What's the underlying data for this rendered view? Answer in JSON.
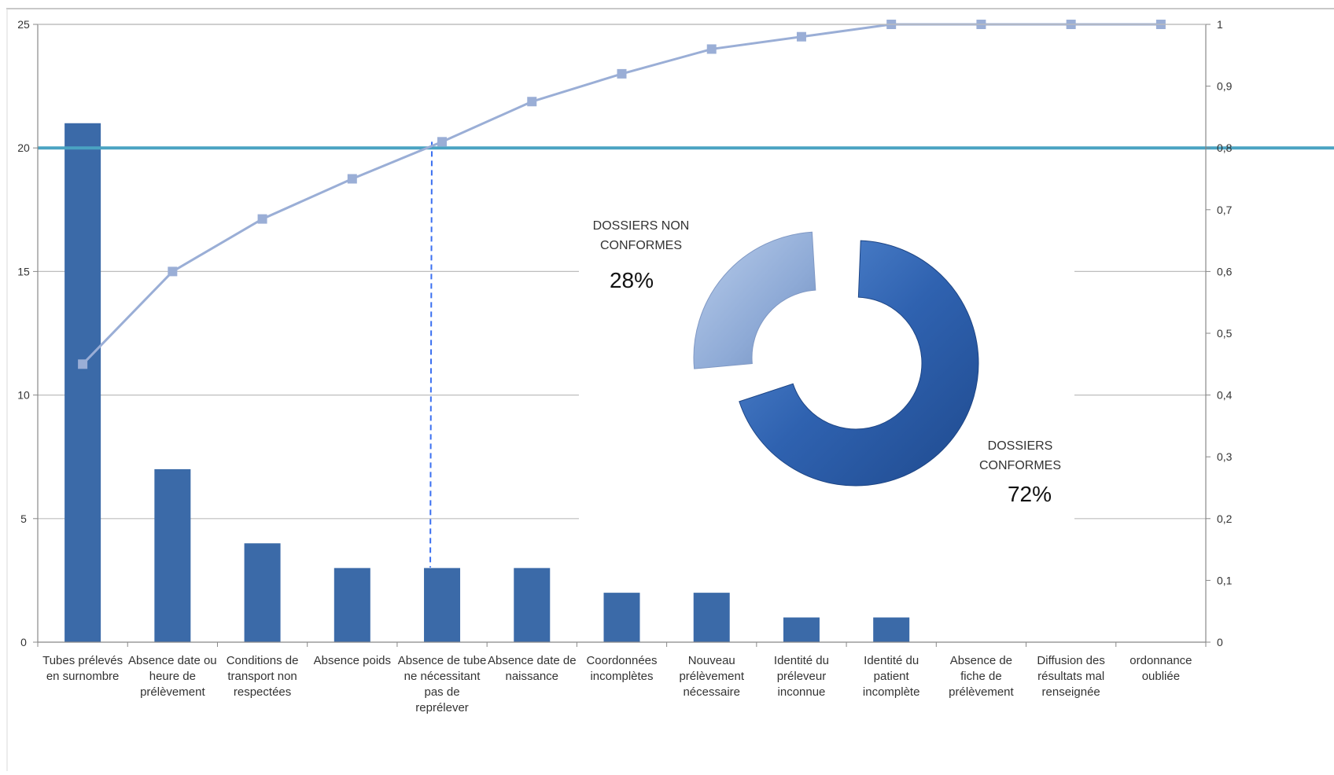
{
  "chart_data": {
    "type": "bar",
    "categories": [
      [
        "Tubes prélevés",
        "en surnombre"
      ],
      [
        "Absence date ou",
        "heure de",
        "prélèvement"
      ],
      [
        "Conditions de",
        "transport non",
        "respectées"
      ],
      [
        "Absence poids"
      ],
      [
        "Absence de tube",
        "ne nécessitant",
        "pas de",
        "reprélever"
      ],
      [
        "Absence date de",
        "naissance"
      ],
      [
        "Coordonnées",
        "incomplètes"
      ],
      [
        "Nouveau",
        "prélèvement",
        "nécessaire"
      ],
      [
        "Identité du",
        "préleveur",
        "inconnue"
      ],
      [
        "Identité du",
        "patient",
        "incomplète"
      ],
      [
        "Absence de",
        "fiche de",
        "prélèvement"
      ],
      [
        "Diffusion des",
        "résultats mal",
        "renseignée"
      ],
      [
        "ordonnance",
        "oubliée"
      ]
    ],
    "series": [
      {
        "type": "bar",
        "axis": "left",
        "values": [
          21,
          7,
          4,
          3,
          3,
          3,
          2,
          2,
          1,
          1,
          0,
          0,
          0
        ],
        "color": "#3b6aa8"
      },
      {
        "type": "line",
        "axis": "right",
        "values": [
          0.45,
          0.6,
          0.685,
          0.75,
          0.81,
          0.875,
          0.92,
          0.96,
          0.98,
          1,
          1,
          1,
          1
        ],
        "color": "#9aaed6"
      }
    ],
    "left_axis": {
      "ylim": [
        0,
        25
      ],
      "ticks": [
        "0",
        "5",
        "10",
        "15",
        "20",
        "25"
      ],
      "tick_values": [
        0,
        5,
        10,
        15,
        20,
        25
      ]
    },
    "right_axis": {
      "ylim": [
        0,
        1
      ],
      "ticks": [
        "0",
        "0,1",
        "0,2",
        "0,3",
        "0,4",
        "0,5",
        "0,6",
        "0,7",
        "0,8",
        "0,9",
        "1"
      ],
      "tick_values": [
        0,
        0.1,
        0.2,
        0.3,
        0.4,
        0.5,
        0.6,
        0.7,
        0.8,
        0.9,
        1
      ]
    },
    "threshold": {
      "value": 0.8,
      "axis": "right",
      "color": "#4aa3c2"
    },
    "crossing_category_index": 4,
    "grid": true,
    "inset_donut": {
      "type": "pie",
      "slices": [
        {
          "label": "DOSSIERS NON CONFORMES",
          "label_lines": [
            "DOSSIERS NON",
            "CONFORMES"
          ],
          "percent_text": "28%",
          "value": 28,
          "color": "#8eaad6"
        },
        {
          "label": "DOSSIERS CONFORMES",
          "label_lines": [
            "DOSSIERS",
            "CONFORMES"
          ],
          "percent_text": "72%",
          "value": 72,
          "color": "#2f62b0"
        }
      ]
    }
  }
}
